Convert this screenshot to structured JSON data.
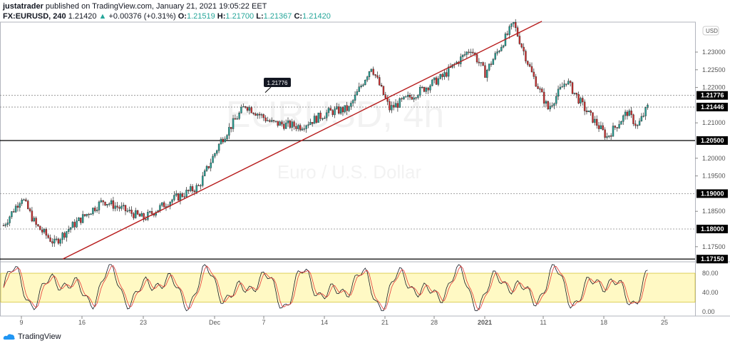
{
  "header": {
    "author": "justatrader",
    "published": "published on TradingView.com, January 21, 2021 19:05:22 EET",
    "symbol": "FX:EURUSD, 240",
    "last": "1.21420",
    "change": "+0.00376 (+0.31%)",
    "o_label": "O:",
    "o": "1.21519",
    "h_label": "H:",
    "h": "1.21700",
    "l_label": "L:",
    "l": "1.21367",
    "c_label": "C:",
    "c": "1.21420"
  },
  "watermark": {
    "title": "EURUSD, 4h",
    "subtitle": "Euro / U.S. Dollar"
  },
  "footer": {
    "brand": "TradingView"
  },
  "colors": {
    "up": "#26a69a",
    "down": "#d32f2f",
    "trend": "#b71c1c",
    "band": "#fff9c4",
    "k": "#131722",
    "d": "#e53935",
    "accent_green": "#26a69a"
  },
  "chart_data": {
    "type": "candlestick",
    "timeframe": "240",
    "currency": "USD",
    "price_ticks": [
      "1.23000",
      "1.22500",
      "1.22000",
      "1.21000",
      "1.20000",
      "1.19500",
      "1.18500",
      "1.17500"
    ],
    "price_ticks_values": [
      1.23,
      1.225,
      1.22,
      1.21,
      1.2,
      1.195,
      1.185,
      1.175
    ],
    "price_labels": [
      {
        "text": "1.21776",
        "v": 1.21776
      },
      {
        "text": "1.21446",
        "v": 1.21446
      },
      {
        "text": "1.20500",
        "v": 1.205
      },
      {
        "text": "1.19000",
        "v": 1.19
      },
      {
        "text": "1.18000",
        "v": 1.18
      },
      {
        "text": "1.17150",
        "v": 1.1715
      }
    ],
    "horizontal_lines": [
      {
        "v": 1.205,
        "style": "solid"
      },
      {
        "v": 1.1715,
        "style": "solid"
      },
      {
        "v": 1.19,
        "style": "dotted"
      },
      {
        "v": 1.18,
        "style": "dotted"
      },
      {
        "v": 1.21776,
        "style": "dotted"
      },
      {
        "v": 1.21446,
        "style": "dotted"
      }
    ],
    "callout": {
      "text": "1.21776",
      "v": 1.21776
    },
    "trendline": {
      "from": [
        1.1715
      ],
      "to": [
        1.2387
      ]
    },
    "time_ticks": [
      "9",
      "16",
      "23",
      "Dec",
      "7",
      "14",
      "21",
      "28",
      "2021",
      "11",
      "18",
      "25"
    ],
    "price_path": [
      [
        0,
        1.181
      ],
      [
        9,
        1.189
      ],
      [
        16,
        1.181
      ],
      [
        25,
        1.176
      ],
      [
        32,
        1.18
      ],
      [
        49,
        1.188
      ],
      [
        69,
        1.183
      ],
      [
        82,
        1.188
      ],
      [
        96,
        1.192
      ],
      [
        107,
        1.205
      ],
      [
        119,
        1.215
      ],
      [
        132,
        1.21
      ],
      [
        146,
        1.209
      ],
      [
        160,
        1.213
      ],
      [
        170,
        1.214
      ],
      [
        181,
        1.226
      ],
      [
        190,
        1.214
      ],
      [
        202,
        1.218
      ],
      [
        216,
        1.223
      ],
      [
        230,
        1.231
      ],
      [
        237,
        1.224
      ],
      [
        251,
        1.238
      ],
      [
        260,
        1.224
      ],
      [
        268,
        1.214
      ],
      [
        277,
        1.222
      ],
      [
        286,
        1.214
      ],
      [
        297,
        1.206
      ],
      [
        307,
        1.213
      ],
      [
        312,
        1.209
      ],
      [
        317,
        1.2144
      ]
    ],
    "oscillator": {
      "ticks": [
        "80.00",
        "40.00",
        "0.00"
      ],
      "tick_values": [
        80,
        40,
        0
      ],
      "band": [
        20,
        80
      ]
    }
  }
}
